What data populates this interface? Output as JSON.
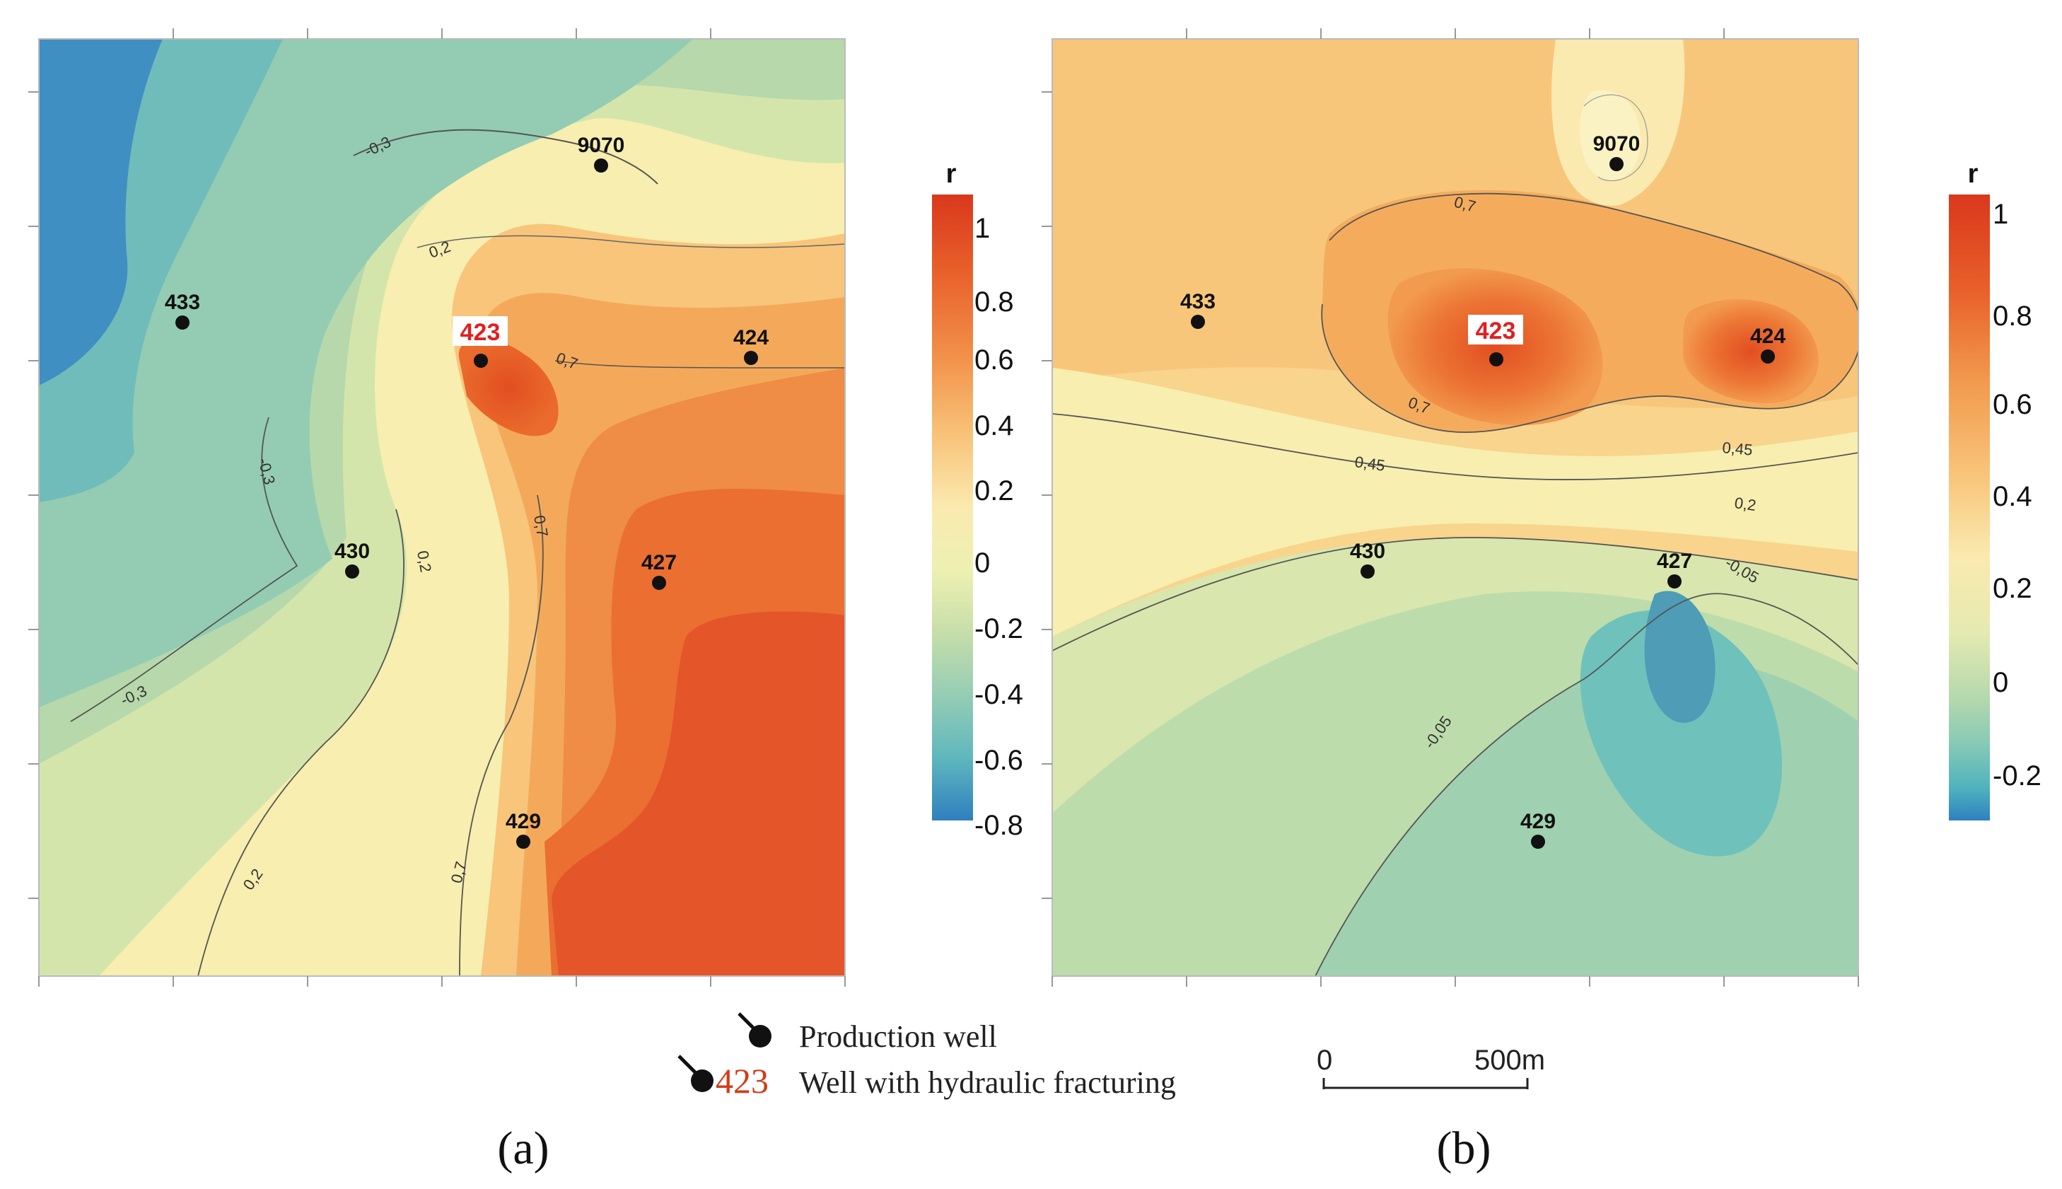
{
  "colors": {
    "deep_blue": "#2f7fbf",
    "teal": "#6fc1bc",
    "pale_green": "#c6dda7",
    "pale_yellow": "#f7eeaf",
    "orange_light": "#f8c57b",
    "orange": "#f29a4d",
    "orange_dark": "#ea6b2c",
    "red": "#e04d20",
    "fracture_label": "#e02020"
  },
  "panel_a": {
    "label": "(a)",
    "wells": [
      {
        "id": "9070",
        "fracture": false
      },
      {
        "id": "433",
        "fracture": false
      },
      {
        "id": "423",
        "fracture": true
      },
      {
        "id": "424",
        "fracture": false
      },
      {
        "id": "430",
        "fracture": false
      },
      {
        "id": "427",
        "fracture": false
      },
      {
        "id": "429",
        "fracture": false
      }
    ],
    "contour_labels": [
      "-0,3",
      "0,2",
      "0,7",
      "-0,3",
      "0,2",
      "0,7",
      "-0,3",
      "0,2",
      "0,7"
    ],
    "colorbar": {
      "title": "r",
      "ticks": [
        "1",
        "0.8",
        "0.6",
        "0.4",
        "0.2",
        "0",
        "-0.2",
        "-0.4",
        "-0.6",
        "-0.8"
      ]
    }
  },
  "panel_b": {
    "label": "(b)",
    "wells": [
      {
        "id": "9070",
        "fracture": false
      },
      {
        "id": "433",
        "fracture": false
      },
      {
        "id": "423",
        "fracture": true
      },
      {
        "id": "424",
        "fracture": false
      },
      {
        "id": "430",
        "fracture": false
      },
      {
        "id": "427",
        "fracture": false
      },
      {
        "id": "429",
        "fracture": false
      }
    ],
    "contour_labels": [
      "0,7",
      "0,7",
      "0,45",
      "0,45",
      "0,2",
      "-0,05",
      "-0,05"
    ],
    "colorbar": {
      "title": "r",
      "ticks": [
        "1",
        "0.8",
        "0.6",
        "0.4",
        "0.2",
        "0",
        "-0.2"
      ]
    }
  },
  "legend": {
    "production_well": "Production well",
    "fracture_number": "423",
    "fracture_well": "Well with hydraulic fracturing"
  },
  "scale_bar": {
    "start": "0",
    "end": "500m"
  }
}
